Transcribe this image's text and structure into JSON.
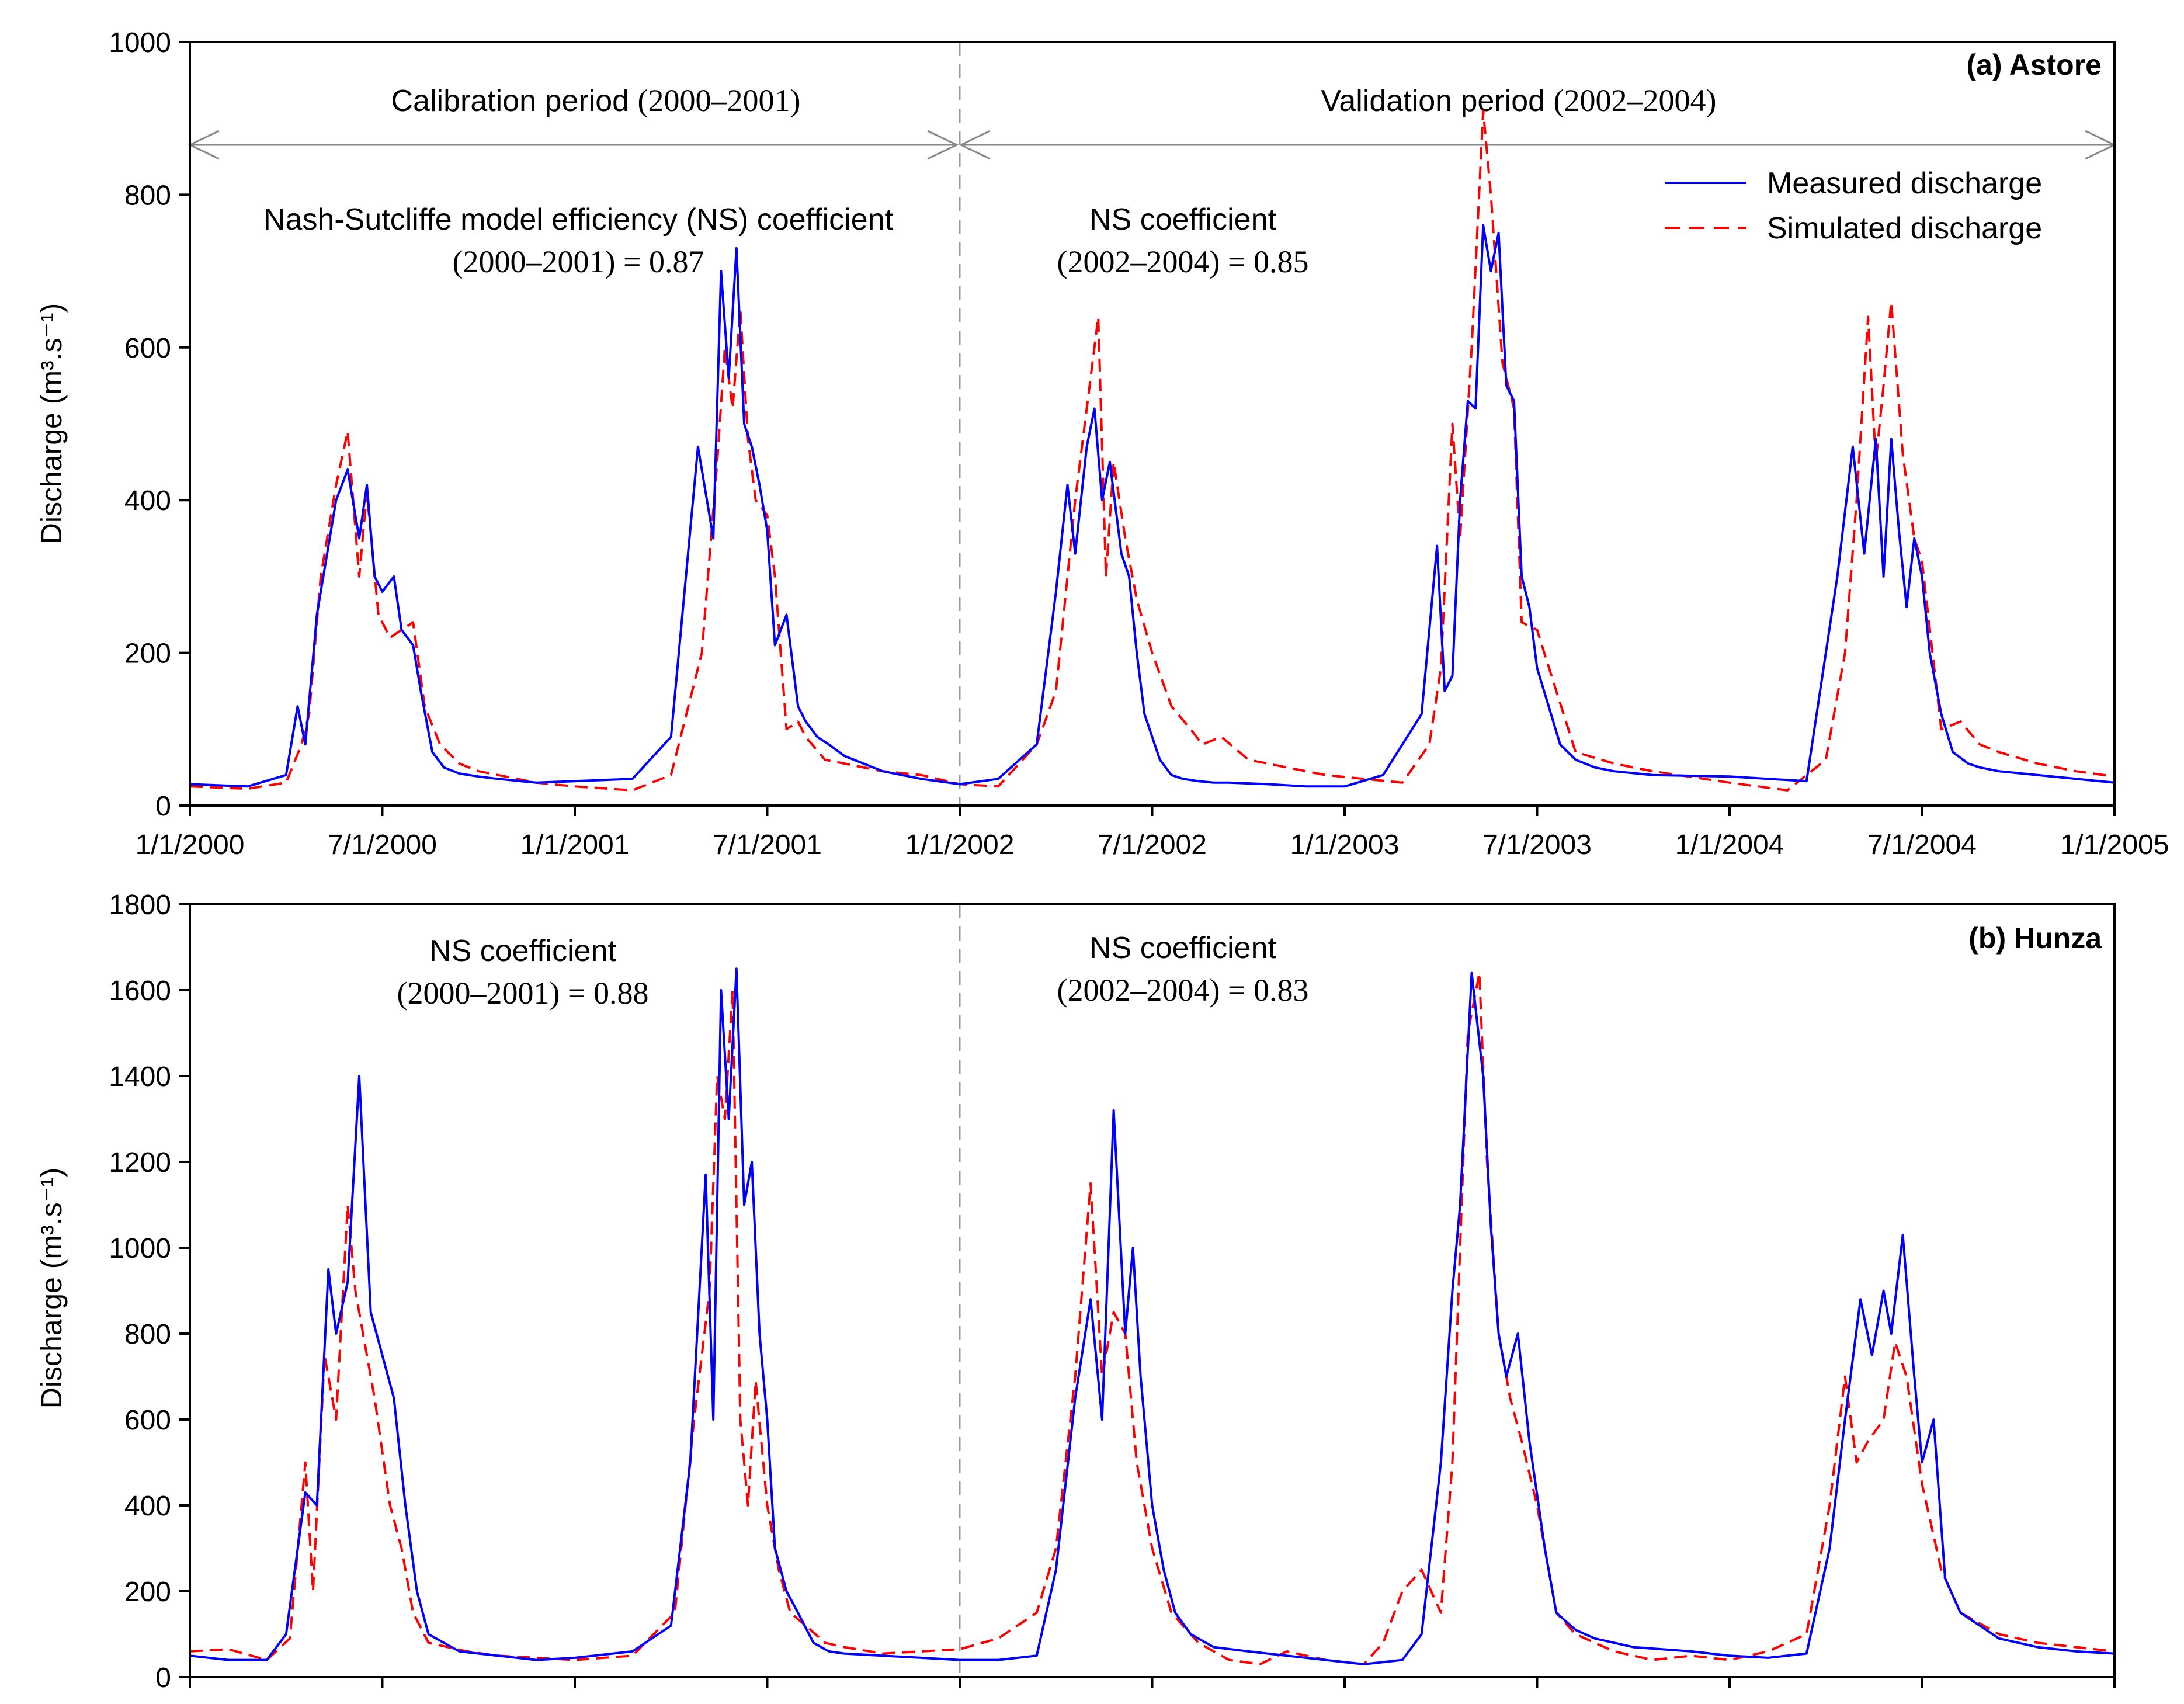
{
  "chart_data": [
    {
      "type": "line",
      "panel_label": "(a) Astore",
      "ylabel": "Discharge (m³.s⁻¹)",
      "ylim": [
        0,
        1000
      ],
      "yticks": [
        "0",
        "200",
        "400",
        "600",
        "800",
        "1000"
      ],
      "xlim": [
        "2000-01-01",
        "2005-01-01"
      ],
      "xticks": [
        "1/1/2000",
        "7/1/2000",
        "1/1/2001",
        "7/1/2001",
        "1/1/2002",
        "7/1/2002",
        "1/1/2003",
        "7/1/2003",
        "1/1/2004",
        "7/1/2004",
        "1/1/2005"
      ],
      "x_unit": "years since 1/1/2000",
      "calibration_label": {
        "text": "Calibration period ",
        "years": "(2000–2001)"
      },
      "validation_label": {
        "text": "Validation period ",
        "years": "(2002–2004)"
      },
      "divider_x": 2.0,
      "annotations": {
        "ns_cal_title": "Nash-Sutcliffe model efficiency (NS) coefficient",
        "ns_cal_value": "(2000–2001) = 0.87",
        "ns_val_title": "NS coefficient",
        "ns_val_value": "(2002–2004) = 0.85"
      },
      "legend": {
        "position": "top-right",
        "measured": "Measured discharge",
        "simulated": "Simulated discharge"
      },
      "series": [
        {
          "name": "Measured discharge",
          "color": "#0000ff",
          "style": "solid",
          "x": [
            0.0,
            0.15,
            0.25,
            0.28,
            0.3,
            0.33,
            0.38,
            0.41,
            0.44,
            0.46,
            0.48,
            0.5,
            0.53,
            0.55,
            0.58,
            0.6,
            0.63,
            0.66,
            0.7,
            0.75,
            0.8,
            0.9,
            1.0,
            1.15,
            1.25,
            1.32,
            1.36,
            1.38,
            1.4,
            1.42,
            1.44,
            1.46,
            1.48,
            1.5,
            1.52,
            1.55,
            1.58,
            1.6,
            1.63,
            1.66,
            1.7,
            1.75,
            1.8,
            1.9,
            2.0,
            2.1,
            2.2,
            2.25,
            2.28,
            2.3,
            2.33,
            2.35,
            2.37,
            2.39,
            2.42,
            2.44,
            2.46,
            2.48,
            2.5,
            2.52,
            2.55,
            2.58,
            2.62,
            2.66,
            2.7,
            2.8,
            2.9,
            3.0,
            3.1,
            3.2,
            3.24,
            3.26,
            3.28,
            3.3,
            3.32,
            3.34,
            3.36,
            3.38,
            3.4,
            3.42,
            3.44,
            3.46,
            3.48,
            3.5,
            3.53,
            3.56,
            3.6,
            3.65,
            3.7,
            3.8,
            4.0,
            4.1,
            4.2,
            4.28,
            4.32,
            4.35,
            4.38,
            4.4,
            4.42,
            4.44,
            4.46,
            4.48,
            4.5,
            4.52,
            4.55,
            4.58,
            4.62,
            4.65,
            4.7,
            4.8,
            4.9,
            5.0
          ],
          "y": [
            28,
            25,
            40,
            130,
            80,
            250,
            400,
            440,
            350,
            420,
            300,
            280,
            300,
            230,
            210,
            150,
            70,
            50,
            42,
            38,
            35,
            30,
            32,
            35,
            90,
            470,
            350,
            700,
            560,
            730,
            500,
            470,
            420,
            360,
            210,
            250,
            130,
            110,
            90,
            80,
            65,
            55,
            45,
            35,
            28,
            35,
            80,
            280,
            420,
            330,
            470,
            520,
            400,
            450,
            330,
            300,
            200,
            120,
            90,
            60,
            40,
            35,
            32,
            30,
            30,
            28,
            25,
            25,
            40,
            120,
            340,
            150,
            170,
            400,
            530,
            520,
            760,
            700,
            750,
            550,
            530,
            300,
            260,
            180,
            130,
            80,
            60,
            50,
            45,
            40,
            38,
            35,
            32,
            300,
            470,
            330,
            480,
            300,
            480,
            360,
            260,
            350,
            300,
            200,
            120,
            70,
            55,
            50,
            45,
            40,
            35,
            30
          ]
        },
        {
          "name": "Simulated discharge",
          "color": "#ff0000",
          "style": "dashed",
          "x": [
            0.0,
            0.15,
            0.25,
            0.29,
            0.31,
            0.34,
            0.38,
            0.41,
            0.44,
            0.46,
            0.49,
            0.52,
            0.55,
            0.58,
            0.61,
            0.65,
            0.7,
            0.75,
            0.8,
            0.9,
            1.0,
            1.15,
            1.25,
            1.33,
            1.37,
            1.39,
            1.41,
            1.43,
            1.45,
            1.47,
            1.5,
            1.52,
            1.55,
            1.58,
            1.6,
            1.65,
            1.7,
            1.8,
            1.9,
            2.0,
            2.1,
            2.2,
            2.25,
            2.3,
            2.33,
            2.36,
            2.38,
            2.4,
            2.43,
            2.46,
            2.5,
            2.55,
            2.6,
            2.63,
            2.68,
            2.75,
            2.85,
            2.95,
            3.05,
            3.15,
            3.22,
            3.25,
            3.28,
            3.3,
            3.33,
            3.36,
            3.38,
            3.41,
            3.44,
            3.46,
            3.5,
            3.55,
            3.6,
            3.7,
            3.8,
            4.0,
            4.15,
            4.25,
            4.3,
            4.33,
            4.36,
            4.38,
            4.4,
            4.42,
            4.45,
            4.48,
            4.5,
            4.55,
            4.6,
            4.65,
            4.7,
            4.8,
            4.9,
            5.0
          ],
          "y": [
            25,
            22,
            30,
            80,
            120,
            300,
            420,
            490,
            300,
            410,
            250,
            220,
            230,
            240,
            130,
            80,
            55,
            45,
            40,
            30,
            25,
            20,
            40,
            200,
            450,
            600,
            520,
            650,
            480,
            400,
            380,
            300,
            100,
            110,
            90,
            60,
            55,
            45,
            40,
            28,
            25,
            80,
            150,
            400,
            520,
            640,
            300,
            450,
            350,
            270,
            200,
            130,
            100,
            80,
            90,
            60,
            50,
            40,
            35,
            30,
            80,
            180,
            500,
            350,
            600,
            910,
            800,
            580,
            520,
            240,
            230,
            150,
            70,
            55,
            45,
            30,
            20,
            60,
            200,
            400,
            640,
            450,
            550,
            660,
            460,
            350,
            320,
            100,
            110,
            80,
            70,
            55,
            45,
            38
          ]
        }
      ]
    },
    {
      "type": "line",
      "panel_label": "(b) Hunza",
      "ylabel": "Discharge (m³.s⁻¹)",
      "ylim": [
        0,
        1800
      ],
      "yticks": [
        "0",
        "200",
        "400",
        "600",
        "800",
        "1000",
        "1200",
        "1400",
        "1600",
        "1800"
      ],
      "xlim": [
        "2000-01-01",
        "2005-01-01"
      ],
      "x_unit": "years since 1/1/2000",
      "divider_x": 2.0,
      "annotations": {
        "ns_cal_title": "NS coefficient",
        "ns_cal_value": "(2000–2001) = 0.88",
        "ns_val_title": "NS coefficient",
        "ns_val_value": "(2002–2004) = 0.83"
      },
      "series": [
        {
          "name": "Measured discharge",
          "color": "#0000ff",
          "style": "solid",
          "x": [
            0.0,
            0.1,
            0.2,
            0.25,
            0.3,
            0.33,
            0.36,
            0.38,
            0.41,
            0.44,
            0.47,
            0.5,
            0.53,
            0.56,
            0.59,
            0.62,
            0.66,
            0.7,
            0.8,
            0.9,
            1.0,
            1.15,
            1.25,
            1.3,
            1.34,
            1.36,
            1.38,
            1.4,
            1.42,
            1.44,
            1.46,
            1.48,
            1.5,
            1.52,
            1.55,
            1.58,
            1.62,
            1.66,
            1.7,
            1.8,
            1.9,
            2.0,
            2.1,
            2.2,
            2.25,
            2.3,
            2.34,
            2.37,
            2.4,
            2.43,
            2.45,
            2.47,
            2.5,
            2.53,
            2.56,
            2.6,
            2.66,
            2.75,
            2.85,
            2.95,
            3.05,
            3.15,
            3.2,
            3.25,
            3.28,
            3.3,
            3.33,
            3.36,
            3.38,
            3.4,
            3.42,
            3.45,
            3.48,
            3.52,
            3.55,
            3.6,
            3.65,
            3.75,
            3.9,
            4.0,
            4.1,
            4.2,
            4.26,
            4.3,
            4.34,
            4.37,
            4.4,
            4.42,
            4.45,
            4.48,
            4.5,
            4.53,
            4.56,
            4.6,
            4.7,
            4.8,
            4.9,
            5.0
          ],
          "y": [
            50,
            40,
            40,
            100,
            430,
            400,
            950,
            800,
            920,
            1400,
            850,
            750,
            650,
            400,
            200,
            100,
            80,
            60,
            50,
            40,
            45,
            60,
            120,
            500,
            1170,
            600,
            1600,
            1300,
            1650,
            1100,
            1200,
            800,
            600,
            300,
            200,
            150,
            80,
            60,
            55,
            50,
            45,
            40,
            40,
            50,
            250,
            650,
            880,
            600,
            1320,
            800,
            1000,
            700,
            400,
            250,
            150,
            100,
            70,
            60,
            50,
            40,
            30,
            40,
            100,
            500,
            900,
            1100,
            1640,
            1400,
            1050,
            800,
            700,
            800,
            550,
            300,
            150,
            110,
            90,
            70,
            60,
            50,
            45,
            55,
            300,
            600,
            880,
            750,
            900,
            800,
            1030,
            700,
            500,
            600,
            230,
            150,
            90,
            70,
            60,
            55
          ]
        },
        {
          "name": "Simulated discharge",
          "color": "#ff0000",
          "style": "dashed",
          "x": [
            0.0,
            0.1,
            0.2,
            0.26,
            0.3,
            0.32,
            0.35,
            0.38,
            0.41,
            0.43,
            0.45,
            0.48,
            0.52,
            0.55,
            0.58,
            0.62,
            0.67,
            0.72,
            0.8,
            0.9,
            1.0,
            1.15,
            1.26,
            1.31,
            1.35,
            1.37,
            1.39,
            1.41,
            1.43,
            1.45,
            1.47,
            1.5,
            1.53,
            1.56,
            1.6,
            1.65,
            1.7,
            1.8,
            1.9,
            2.0,
            2.1,
            2.2,
            2.25,
            2.3,
            2.34,
            2.37,
            2.4,
            2.43,
            2.46,
            2.5,
            2.55,
            2.62,
            2.7,
            2.78,
            2.85,
            2.95,
            3.05,
            3.1,
            3.15,
            3.2,
            3.25,
            3.28,
            3.3,
            3.32,
            3.35,
            3.37,
            3.4,
            3.43,
            3.46,
            3.5,
            3.55,
            3.6,
            3.7,
            3.8,
            3.9,
            4.0,
            4.1,
            4.2,
            4.26,
            4.3,
            4.33,
            4.36,
            4.4,
            4.43,
            4.46,
            4.5,
            4.55,
            4.6,
            4.7,
            4.8,
            4.9,
            5.0
          ],
          "y": [
            60,
            65,
            40,
            90,
            500,
            200,
            750,
            600,
            1100,
            900,
            800,
            650,
            400,
            300,
            150,
            80,
            70,
            60,
            50,
            45,
            40,
            50,
            150,
            600,
            900,
            1400,
            1300,
            1600,
            600,
            400,
            690,
            400,
            250,
            150,
            120,
            80,
            70,
            55,
            60,
            65,
            90,
            150,
            300,
            700,
            1150,
            700,
            850,
            800,
            500,
            300,
            150,
            80,
            40,
            30,
            60,
            40,
            30,
            80,
            200,
            250,
            150,
            500,
            1000,
            1500,
            1640,
            1200,
            800,
            650,
            550,
            400,
            150,
            100,
            60,
            40,
            50,
            40,
            60,
            100,
            400,
            700,
            500,
            550,
            600,
            780,
            700,
            450,
            250,
            150,
            100,
            80,
            70,
            60
          ]
        }
      ]
    }
  ]
}
